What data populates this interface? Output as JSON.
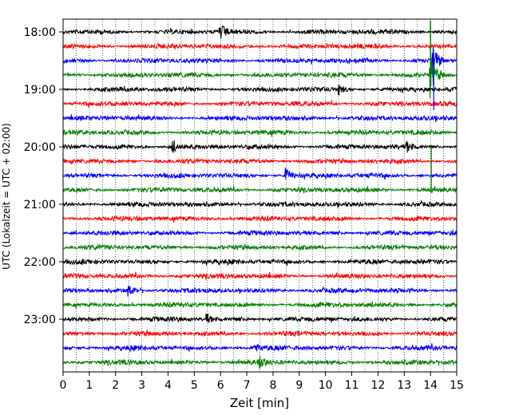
{
  "chart_data": {
    "type": "line",
    "title": "",
    "xlabel": "Zeit  [min]",
    "ylabel": "UTC (Lokalzeit = UTC + 02:00)",
    "xlim": [
      0,
      15
    ],
    "x_ticks": [
      0,
      1,
      2,
      3,
      4,
      5,
      6,
      7,
      8,
      9,
      10,
      11,
      12,
      13,
      14,
      15
    ],
    "y_ticks": [
      {
        "trace_index": 0,
        "label": "18:00"
      },
      {
        "trace_index": 4,
        "label": "19:00"
      },
      {
        "trace_index": 8,
        "label": "20:00"
      },
      {
        "trace_index": 12,
        "label": "21:00"
      },
      {
        "trace_index": 16,
        "label": "22:00"
      },
      {
        "trace_index": 20,
        "label": "23:00"
      }
    ],
    "minutes_per_trace": 15,
    "start_time": "18:00",
    "trace_colors": [
      "#000000",
      "#ff0000",
      "#0000ff",
      "#008000"
    ],
    "grid": {
      "vertical_minor_every_min": 0.5,
      "style": "dotted"
    },
    "events": [
      {
        "trace_index": 0,
        "minute": 6.0,
        "amplitude": "medium"
      },
      {
        "trace_index": 2,
        "minute": 14.1,
        "amplitude": "large"
      },
      {
        "trace_index": 3,
        "minute": 14.0,
        "amplitude": "very large"
      },
      {
        "trace_index": 4,
        "minute": 10.5,
        "amplitude": "small"
      },
      {
        "trace_index": 8,
        "minute": 4.2,
        "amplitude": "small"
      },
      {
        "trace_index": 8,
        "minute": 13.1,
        "amplitude": "small"
      },
      {
        "trace_index": 10,
        "minute": 8.5,
        "amplitude": "medium"
      },
      {
        "trace_index": 18,
        "minute": 2.5,
        "amplitude": "small"
      },
      {
        "trace_index": 20,
        "minute": 5.5,
        "amplitude": "small"
      },
      {
        "trace_index": 22,
        "minute": 7.3,
        "amplitude": "small"
      },
      {
        "trace_index": 23,
        "minute": 7.5,
        "amplitude": "small"
      }
    ]
  }
}
